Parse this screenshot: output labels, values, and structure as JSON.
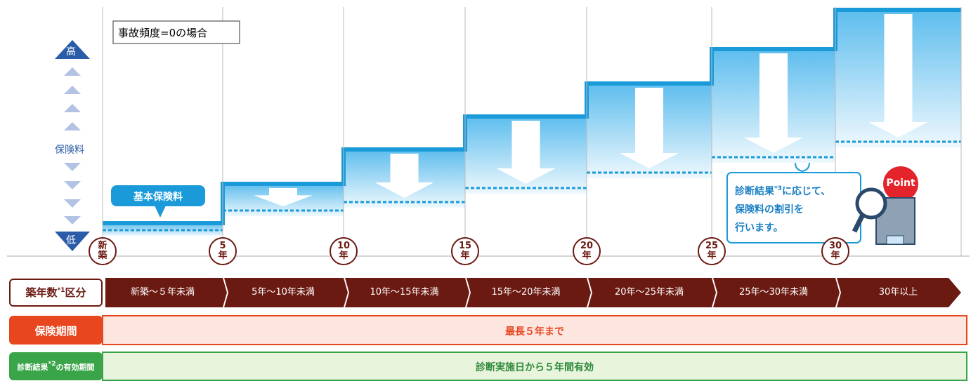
{
  "legend_note": "事故頻度=0の場合",
  "scale": {
    "high": "高",
    "label": "保険料",
    "low": "低"
  },
  "base_label": "基本保険料",
  "milestones": [
    "新築",
    "5年",
    "10年",
    "15年",
    "20年",
    "25年",
    "30年"
  ],
  "callout": {
    "line1_before": "診断結果",
    "line1_sup": "*3",
    "line1_after": "に応じて、",
    "line2": "保険料の割引を",
    "line3": "行います。",
    "badge": "Point"
  },
  "rows": [
    {
      "label_before": "築年数",
      "label_sup": "*1",
      "label_after": "区分",
      "cells": [
        "新築～５年未満",
        "5年～10年未満",
        "10年～15年未満",
        "15年～20年未満",
        "20年～25年未満",
        "25年～30年未満",
        "30年以上"
      ]
    },
    {
      "label": "保険期間",
      "text": "最長５年まで"
    },
    {
      "label_before": "診断結果",
      "label_sup": "*2",
      "label_after": "の有効期間",
      "text": "診断実施日から５年間有効"
    }
  ]
}
